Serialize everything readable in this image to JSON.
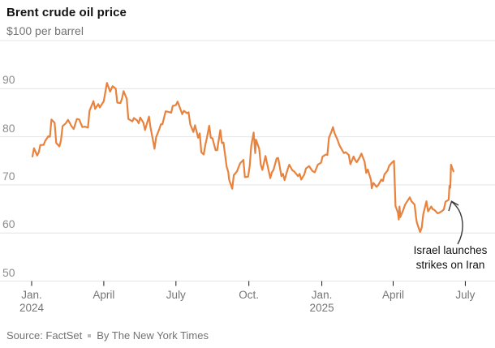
{
  "header": {
    "title": "Brent crude oil price",
    "subtitle": "$100 per barrel"
  },
  "footer": {
    "source": "Source: FactSet",
    "byline": "By The New York Times"
  },
  "colors": {
    "line": "#E8823D",
    "grid": "#E4E4E4",
    "tick": "#1a1a1a",
    "arrow": "#3a3a3a",
    "text_dark": "#121212",
    "text_gray": "#727272"
  },
  "chart_data": {
    "type": "line",
    "title": "Brent crude oil price",
    "ylabel": "$100 per barrel",
    "ylim": [
      50,
      100
    ],
    "grid": true,
    "legend": false,
    "y_axis": {
      "gridline_values": [
        100,
        90,
        80,
        70,
        60,
        50
      ],
      "labeled_values": [
        90,
        80,
        70,
        60,
        50
      ],
      "top_label": "$100 per barrel"
    },
    "x_axis": {
      "ticks": [
        {
          "label": "Jan.",
          "sublabel": "2024",
          "date": "2024-01-01"
        },
        {
          "label": "April",
          "date": "2024-04-01"
        },
        {
          "label": "July",
          "date": "2024-07-01"
        },
        {
          "label": "Oct.",
          "date": "2024-10-01"
        },
        {
          "label": "Jan.",
          "sublabel": "2025",
          "date": "2025-01-01"
        },
        {
          "label": "April",
          "date": "2025-04-01"
        },
        {
          "label": "July",
          "date": "2025-07-01"
        }
      ]
    },
    "annotation": {
      "text_lines": [
        "Israel launches",
        "strikes on Iran"
      ],
      "points_to_date": "2025-06-13",
      "points_to_value": 74.2
    },
    "series": [
      {
        "name": "Brent crude oil price ($ per barrel)",
        "color": "#E8823D",
        "points": [
          [
            "2024-01-02",
            75.9
          ],
          [
            "2024-01-04",
            77.6
          ],
          [
            "2024-01-08",
            76.1
          ],
          [
            "2024-01-10",
            76.8
          ],
          [
            "2024-01-12",
            78.3
          ],
          [
            "2024-01-16",
            78.3
          ],
          [
            "2024-01-18",
            79.1
          ],
          [
            "2024-01-22",
            80.1
          ],
          [
            "2024-01-24",
            80.0
          ],
          [
            "2024-01-26",
            83.6
          ],
          [
            "2024-01-30",
            82.9
          ],
          [
            "2024-02-01",
            78.7
          ],
          [
            "2024-02-05",
            78.0
          ],
          [
            "2024-02-07",
            79.2
          ],
          [
            "2024-02-09",
            82.2
          ],
          [
            "2024-02-13",
            82.8
          ],
          [
            "2024-02-16",
            83.5
          ],
          [
            "2024-02-20",
            82.3
          ],
          [
            "2024-02-23",
            81.6
          ],
          [
            "2024-02-27",
            83.7
          ],
          [
            "2024-03-01",
            83.6
          ],
          [
            "2024-03-05",
            82.0
          ],
          [
            "2024-03-08",
            82.1
          ],
          [
            "2024-03-12",
            81.9
          ],
          [
            "2024-03-14",
            85.4
          ],
          [
            "2024-03-19",
            87.4
          ],
          [
            "2024-03-21",
            85.8
          ],
          [
            "2024-03-25",
            86.8
          ],
          [
            "2024-03-27",
            86.1
          ],
          [
            "2024-04-01",
            87.4
          ],
          [
            "2024-04-03",
            89.4
          ],
          [
            "2024-04-05",
            91.2
          ],
          [
            "2024-04-09",
            89.4
          ],
          [
            "2024-04-12",
            90.5
          ],
          [
            "2024-04-16",
            90.0
          ],
          [
            "2024-04-18",
            87.1
          ],
          [
            "2024-04-22",
            87.0
          ],
          [
            "2024-04-24",
            88.0
          ],
          [
            "2024-04-26",
            89.5
          ],
          [
            "2024-04-30",
            87.9
          ],
          [
            "2024-05-02",
            83.7
          ],
          [
            "2024-05-07",
            83.2
          ],
          [
            "2024-05-09",
            83.9
          ],
          [
            "2024-05-13",
            83.4
          ],
          [
            "2024-05-15",
            82.8
          ],
          [
            "2024-05-17",
            84.0
          ],
          [
            "2024-05-21",
            82.9
          ],
          [
            "2024-05-23",
            81.4
          ],
          [
            "2024-05-28",
            84.2
          ],
          [
            "2024-05-30",
            81.9
          ],
          [
            "2024-06-03",
            78.4
          ],
          [
            "2024-06-04",
            77.5
          ],
          [
            "2024-06-06",
            79.9
          ],
          [
            "2024-06-10",
            81.6
          ],
          [
            "2024-06-12",
            82.6
          ],
          [
            "2024-06-14",
            82.6
          ],
          [
            "2024-06-18",
            85.3
          ],
          [
            "2024-06-21",
            85.2
          ],
          [
            "2024-06-25",
            85.0
          ],
          [
            "2024-06-27",
            86.4
          ],
          [
            "2024-07-01",
            86.6
          ],
          [
            "2024-07-03",
            87.3
          ],
          [
            "2024-07-05",
            86.5
          ],
          [
            "2024-07-09",
            84.7
          ],
          [
            "2024-07-11",
            85.4
          ],
          [
            "2024-07-15",
            84.9
          ],
          [
            "2024-07-17",
            85.1
          ],
          [
            "2024-07-19",
            82.6
          ],
          [
            "2024-07-23",
            81.0
          ],
          [
            "2024-07-25",
            82.4
          ],
          [
            "2024-07-29",
            79.8
          ],
          [
            "2024-07-31",
            80.7
          ],
          [
            "2024-08-02",
            76.8
          ],
          [
            "2024-08-05",
            76.3
          ],
          [
            "2024-08-07",
            78.3
          ],
          [
            "2024-08-09",
            79.7
          ],
          [
            "2024-08-12",
            82.3
          ],
          [
            "2024-08-14",
            79.8
          ],
          [
            "2024-08-16",
            79.7
          ],
          [
            "2024-08-20",
            77.2
          ],
          [
            "2024-08-22",
            77.2
          ],
          [
            "2024-08-26",
            81.4
          ],
          [
            "2024-08-28",
            78.7
          ],
          [
            "2024-08-30",
            78.8
          ],
          [
            "2024-09-03",
            73.8
          ],
          [
            "2024-09-05",
            72.7
          ],
          [
            "2024-09-06",
            71.1
          ],
          [
            "2024-09-10",
            69.2
          ],
          [
            "2024-09-12",
            72.0
          ],
          [
            "2024-09-16",
            72.8
          ],
          [
            "2024-09-18",
            73.7
          ],
          [
            "2024-09-20",
            74.5
          ],
          [
            "2024-09-24",
            75.2
          ],
          [
            "2024-09-26",
            71.6
          ],
          [
            "2024-09-30",
            71.7
          ],
          [
            "2024-10-02",
            73.9
          ],
          [
            "2024-10-04",
            78.1
          ],
          [
            "2024-10-07",
            80.9
          ],
          [
            "2024-10-09",
            76.6
          ],
          [
            "2024-10-10",
            79.4
          ],
          [
            "2024-10-14",
            77.5
          ],
          [
            "2024-10-16",
            74.2
          ],
          [
            "2024-10-18",
            73.1
          ],
          [
            "2024-10-22",
            76.0
          ],
          [
            "2024-10-24",
            74.4
          ],
          [
            "2024-10-28",
            71.4
          ],
          [
            "2024-10-30",
            72.6
          ],
          [
            "2024-11-01",
            73.1
          ],
          [
            "2024-11-05",
            75.5
          ],
          [
            "2024-11-07",
            75.6
          ],
          [
            "2024-11-11",
            71.8
          ],
          [
            "2024-11-13",
            72.3
          ],
          [
            "2024-11-15",
            71.0
          ],
          [
            "2024-11-19",
            73.3
          ],
          [
            "2024-11-21",
            74.2
          ],
          [
            "2024-11-25",
            73.0
          ],
          [
            "2024-11-27",
            72.8
          ],
          [
            "2024-12-02",
            71.8
          ],
          [
            "2024-12-04",
            72.3
          ],
          [
            "2024-12-06",
            71.1
          ],
          [
            "2024-12-10",
            72.2
          ],
          [
            "2024-12-12",
            73.4
          ],
          [
            "2024-12-16",
            73.9
          ],
          [
            "2024-12-18",
            73.4
          ],
          [
            "2024-12-20",
            72.9
          ],
          [
            "2024-12-23",
            72.6
          ],
          [
            "2024-12-27",
            74.2
          ],
          [
            "2024-12-31",
            74.6
          ],
          [
            "2025-01-02",
            75.9
          ],
          [
            "2025-01-06",
            76.3
          ],
          [
            "2025-01-08",
            76.2
          ],
          [
            "2025-01-10",
            79.8
          ],
          [
            "2025-01-13",
            81.0
          ],
          [
            "2025-01-15",
            82.0
          ],
          [
            "2025-01-17",
            80.8
          ],
          [
            "2025-01-21",
            79.3
          ],
          [
            "2025-01-23",
            78.3
          ],
          [
            "2025-01-27",
            77.1
          ],
          [
            "2025-01-29",
            76.6
          ],
          [
            "2025-01-31",
            76.8
          ],
          [
            "2025-02-04",
            76.2
          ],
          [
            "2025-02-06",
            74.3
          ],
          [
            "2025-02-10",
            75.9
          ],
          [
            "2025-02-12",
            75.2
          ],
          [
            "2025-02-14",
            74.7
          ],
          [
            "2025-02-18",
            75.8
          ],
          [
            "2025-02-20",
            76.5
          ],
          [
            "2025-02-24",
            74.8
          ],
          [
            "2025-02-26",
            72.5
          ],
          [
            "2025-02-28",
            73.2
          ],
          [
            "2025-03-04",
            71.0
          ],
          [
            "2025-03-05",
            69.3
          ],
          [
            "2025-03-07",
            70.4
          ],
          [
            "2025-03-11",
            69.6
          ],
          [
            "2025-03-13",
            69.9
          ],
          [
            "2025-03-17",
            71.1
          ],
          [
            "2025-03-19",
            70.8
          ],
          [
            "2025-03-21",
            72.2
          ],
          [
            "2025-03-25",
            73.0
          ],
          [
            "2025-03-27",
            74.0
          ],
          [
            "2025-03-31",
            74.7
          ],
          [
            "2025-04-02",
            75.0
          ],
          [
            "2025-04-03",
            70.1
          ],
          [
            "2025-04-04",
            65.6
          ],
          [
            "2025-04-07",
            64.2
          ],
          [
            "2025-04-08",
            62.8
          ],
          [
            "2025-04-09",
            65.5
          ],
          [
            "2025-04-10",
            63.3
          ],
          [
            "2025-04-14",
            64.9
          ],
          [
            "2025-04-16",
            65.9
          ],
          [
            "2025-04-22",
            67.4
          ],
          [
            "2025-04-24",
            66.6
          ],
          [
            "2025-04-28",
            65.9
          ],
          [
            "2025-04-30",
            63.1
          ],
          [
            "2025-05-01",
            62.1
          ],
          [
            "2025-05-05",
            60.2
          ],
          [
            "2025-05-07",
            61.1
          ],
          [
            "2025-05-09",
            63.9
          ],
          [
            "2025-05-13",
            66.6
          ],
          [
            "2025-05-15",
            64.5
          ],
          [
            "2025-05-19",
            65.5
          ],
          [
            "2025-05-21",
            64.9
          ],
          [
            "2025-05-23",
            64.8
          ],
          [
            "2025-05-27",
            64.1
          ],
          [
            "2025-05-29",
            64.2
          ],
          [
            "2025-06-02",
            64.6
          ],
          [
            "2025-06-04",
            64.9
          ],
          [
            "2025-06-06",
            66.5
          ],
          [
            "2025-06-10",
            66.9
          ],
          [
            "2025-06-11",
            69.8
          ],
          [
            "2025-06-12",
            69.4
          ],
          [
            "2025-06-13",
            74.2
          ],
          [
            "2025-06-16",
            72.8
          ]
        ]
      }
    ]
  }
}
